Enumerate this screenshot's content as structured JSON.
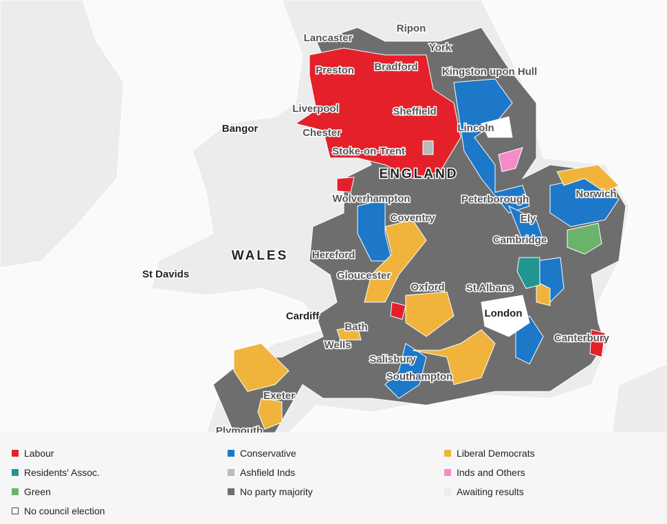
{
  "map": {
    "places": [
      "Lancaster",
      "Ripon",
      "York",
      "Preston",
      "Bradford",
      "Kingston upon Hull",
      "Liverpool",
      "Sheffield",
      "Bangor",
      "Lincoln",
      "Chester",
      "Stoke-on-Trent",
      "Norwich",
      "Wolverhampton",
      "Peterborough",
      "Coventry",
      "Ely",
      "Cambridge",
      "Hereford",
      "St Davids",
      "Gloucester",
      "Oxford",
      "St Albans",
      "Cardiff",
      "London",
      "Bath",
      "Canterbury",
      "Wells",
      "Salisbury",
      "Southampton",
      "Exeter",
      "Plymouth"
    ],
    "countries": [
      "ENGLAND",
      "WALES"
    ]
  },
  "legend": [
    {
      "label": "Labour",
      "color": "#e4212b"
    },
    {
      "label": "Conservative",
      "color": "#1d78c9"
    },
    {
      "label": "Liberal Democrats",
      "color": "#f0b43c"
    },
    {
      "label": "Residents' Assoc.",
      "color": "#22958e"
    },
    {
      "label": "Ashfield Inds",
      "color": "#bbbbbb"
    },
    {
      "label": "Inds and Others",
      "color": "#f58bc6"
    },
    {
      "label": "Green",
      "color": "#6bb36a"
    },
    {
      "label": "No party majority",
      "color": "#6e6e6e"
    },
    {
      "label": "Awaiting results",
      "color": "#ececec"
    },
    {
      "label": "No council election",
      "color": "#ffffff"
    }
  ]
}
